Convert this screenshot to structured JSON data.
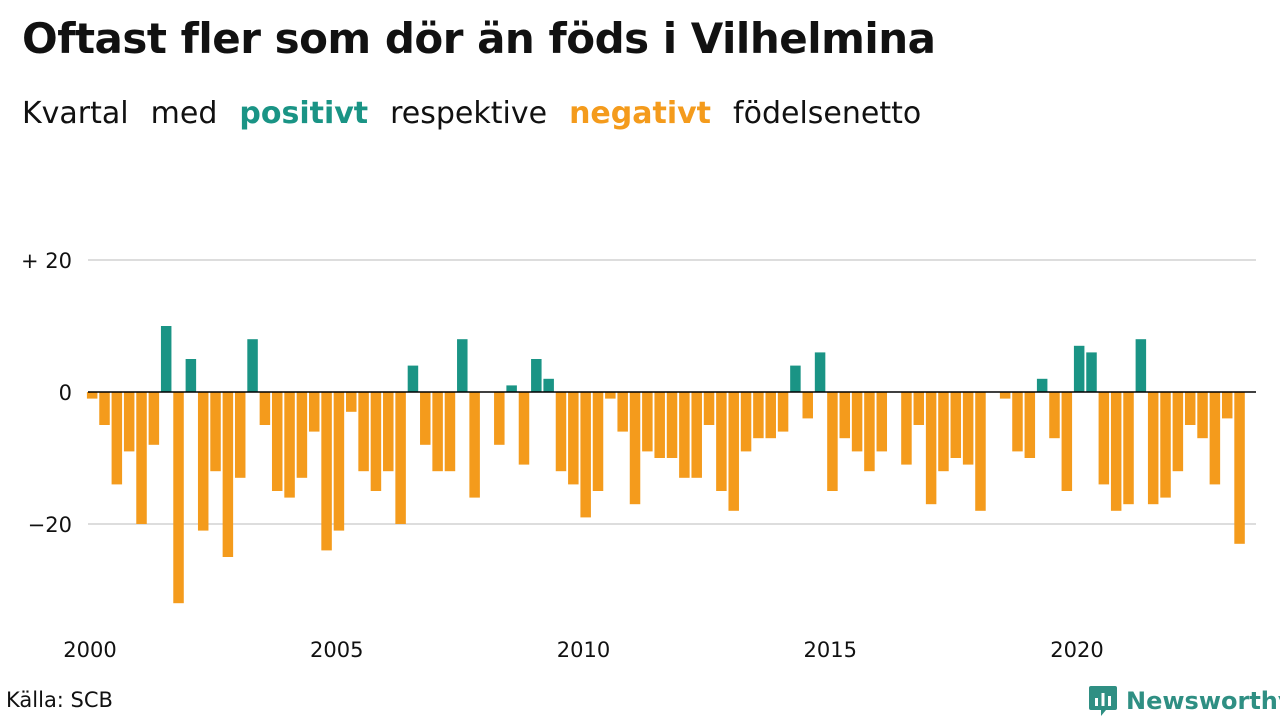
{
  "title": "Oftast fler som dör än föds i Vilhelmina",
  "subtitle": {
    "w1": "Kvartal",
    "w2": "med",
    "w3": "positivt",
    "w4": "respektive",
    "w5": "negativt",
    "w6": "födelsenetto"
  },
  "source": "Källa: SCB",
  "brand": {
    "name": "Newsworthy",
    "icon": "newsworthy-logo-icon"
  },
  "colors": {
    "positive": "#1a9485",
    "negative": "#f49b1c",
    "grid": "#dddddd",
    "axis": "#000000"
  },
  "chart_data": {
    "type": "bar",
    "x_start": "2000 Q1",
    "x_ticks": [
      2000,
      2005,
      2010,
      2015,
      2020
    ],
    "x_tick_labels": [
      "2000",
      "2005",
      "2010",
      "2015",
      "2020"
    ],
    "y_ticks": [
      20,
      0,
      -20
    ],
    "y_tick_labels": [
      "+ 20",
      "0",
      "−20"
    ],
    "ylim": [
      -33,
      22
    ],
    "grid": true,
    "values": [
      -1,
      -5,
      -14,
      -9,
      -20,
      -8,
      10,
      -32,
      5,
      -21,
      -12,
      -25,
      -13,
      8,
      -5,
      -15,
      -16,
      -13,
      -6,
      -24,
      -21,
      -3,
      -12,
      -15,
      -12,
      -20,
      4,
      -8,
      -12,
      -12,
      8,
      -16,
      0,
      -8,
      1,
      -11,
      5,
      2,
      -12,
      -14,
      -19,
      -15,
      -1,
      -6,
      -17,
      -9,
      -10,
      -10,
      -13,
      -13,
      -5,
      -15,
      -18,
      -9,
      -7,
      -7,
      -6,
      4,
      -4,
      6,
      -15,
      -7,
      -9,
      -12,
      -9,
      0,
      -11,
      -5,
      -17,
      -12,
      -10,
      -11,
      -18,
      0,
      -1,
      -9,
      -10,
      2,
      -7,
      -15,
      7,
      6,
      -14,
      -18,
      -17,
      8,
      -17,
      -16,
      -12,
      -5,
      -7,
      -14,
      -4,
      -23
    ]
  }
}
